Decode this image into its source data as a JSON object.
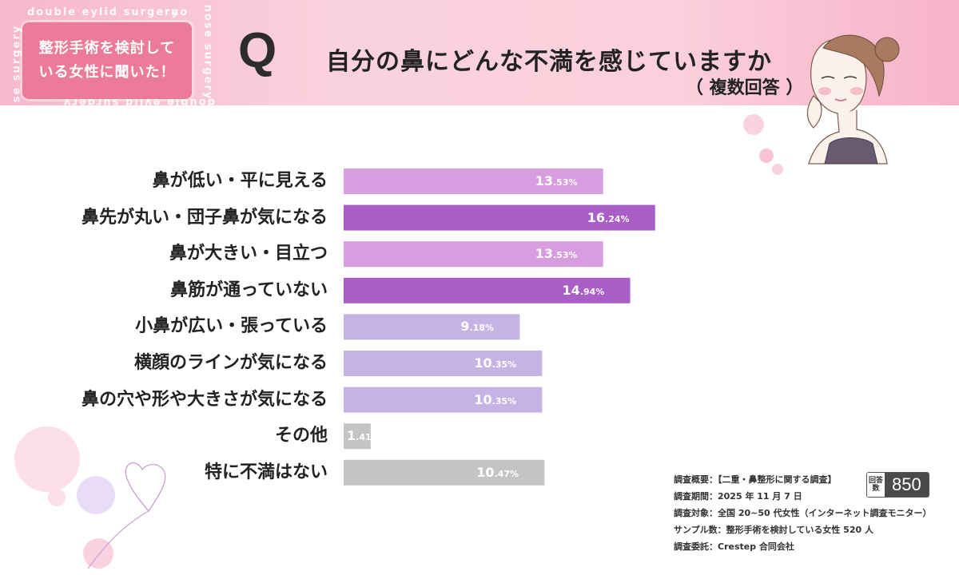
{
  "header": {
    "deco_texts": [
      "double eylid surgery",
      "no",
      "se surgery",
      "nose surgery",
      "double eylid surgery"
    ],
    "badge_lines": [
      "整形手術を検討して",
      "いる女性に聞いた！"
    ],
    "q_mark": "Q",
    "title": "自分の鼻にどんな不満を感じていますか",
    "subtitle": "（ 複数回答 ）"
  },
  "colors": {
    "dark_purple": "#a95ec8",
    "light_purple": "#d79ddf",
    "lavender": "#c5b3e4",
    "gray": "#c4c4c4",
    "pink_badge": "#ec7a9b"
  },
  "chart_data": {
    "type": "bar",
    "orientation": "horizontal",
    "title": "自分の鼻にどんな不満を感じていますか",
    "subtitle": "（ 複数回答 ）",
    "unit": "%",
    "categories": [
      "鼻が低い・平に見える",
      "鼻先が丸い・団子鼻が気になる",
      "鼻が大きい・目立つ",
      "鼻筋が通っていない",
      "小鼻が広い・張っている",
      "横顔のラインが気になる",
      "鼻の穴や形や大きさが気になる",
      "その他",
      "特に不満はない"
    ],
    "values": [
      13.53,
      16.24,
      13.53,
      14.94,
      9.18,
      10.35,
      10.35,
      1.41,
      10.47
    ],
    "value_int": [
      "13",
      "16",
      "13",
      "14",
      "9",
      "10",
      "10",
      "1",
      "10"
    ],
    "value_dec": [
      ".53%",
      ".24%",
      ".53%",
      ".94%",
      ".18%",
      ".35%",
      ".35%",
      ".41%",
      ".47%"
    ],
    "bar_colors": [
      "#d79ddf",
      "#a95ec8",
      "#d79ddf",
      "#a95ec8",
      "#c5b3e4",
      "#c5b3e4",
      "#c5b3e4",
      "#c4c4c4",
      "#c4c4c4"
    ],
    "xlim": [
      0,
      20
    ],
    "grid": false,
    "legend": "none"
  },
  "survey_info": {
    "lines": [
      "調査概要：【二重・鼻整形に関する調査】",
      "調査期間：2025 年 11 月 7 日",
      "調査対象：全国 20~50 代女性（インターネット調査モニター）",
      "サンプル数：整形手術を検討している女性 520 人",
      "調査委託：Crestep 合同会社"
    ],
    "count_tag": "回答数",
    "count": "850"
  }
}
